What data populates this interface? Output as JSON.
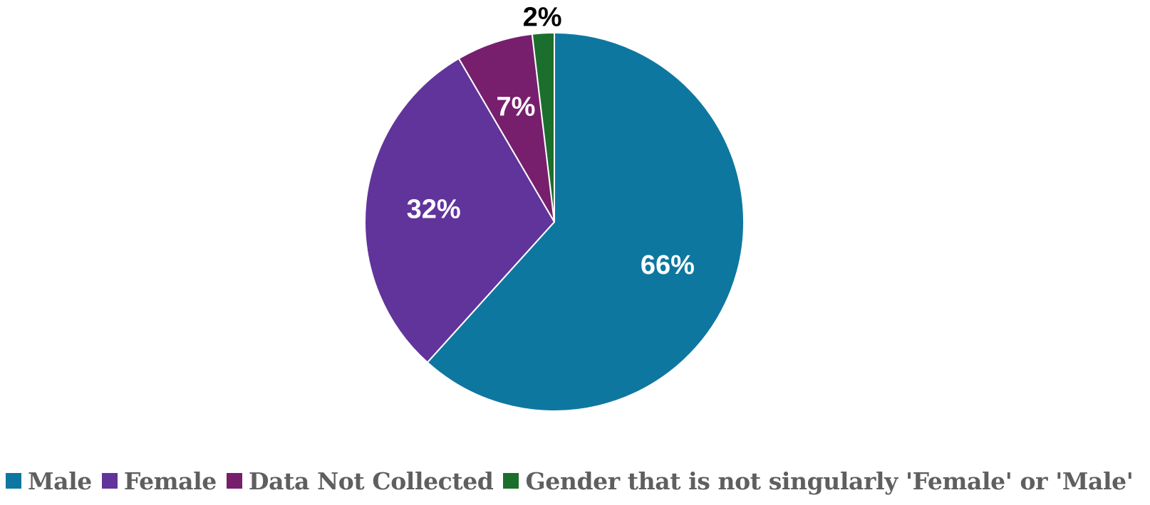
{
  "chart_data": {
    "type": "pie",
    "title": "",
    "start_angle_deg": 0,
    "direction": "clockwise",
    "legend_position": "bottom",
    "slices": [
      {
        "label": "Male",
        "value": 66,
        "display": "66%",
        "color": "#0e77a0",
        "label_color": "#ffffff",
        "label_placement": "inside"
      },
      {
        "label": "Female",
        "value": 32,
        "display": "32%",
        "color": "#61349b",
        "label_color": "#ffffff",
        "label_placement": "inside"
      },
      {
        "label": "Data Not Collected",
        "value": 7,
        "display": "7%",
        "color": "#771f6d",
        "label_color": "#ffffff",
        "label_placement": "inside"
      },
      {
        "label": "Gender that is not singularly 'Female' or 'Male'",
        "value": 2,
        "display": "2%",
        "color": "#1c6e2c",
        "label_color": "#000000",
        "label_placement": "outside"
      }
    ]
  },
  "legend": {
    "items": [
      {
        "label": "Male",
        "color": "#0e77a0"
      },
      {
        "label": "Female",
        "color": "#61349b"
      },
      {
        "label": "Data Not Collected",
        "color": "#771f6d"
      },
      {
        "label": "Gender that is not singularly 'Female' or 'Male'",
        "color": "#1c6e2c"
      }
    ]
  }
}
